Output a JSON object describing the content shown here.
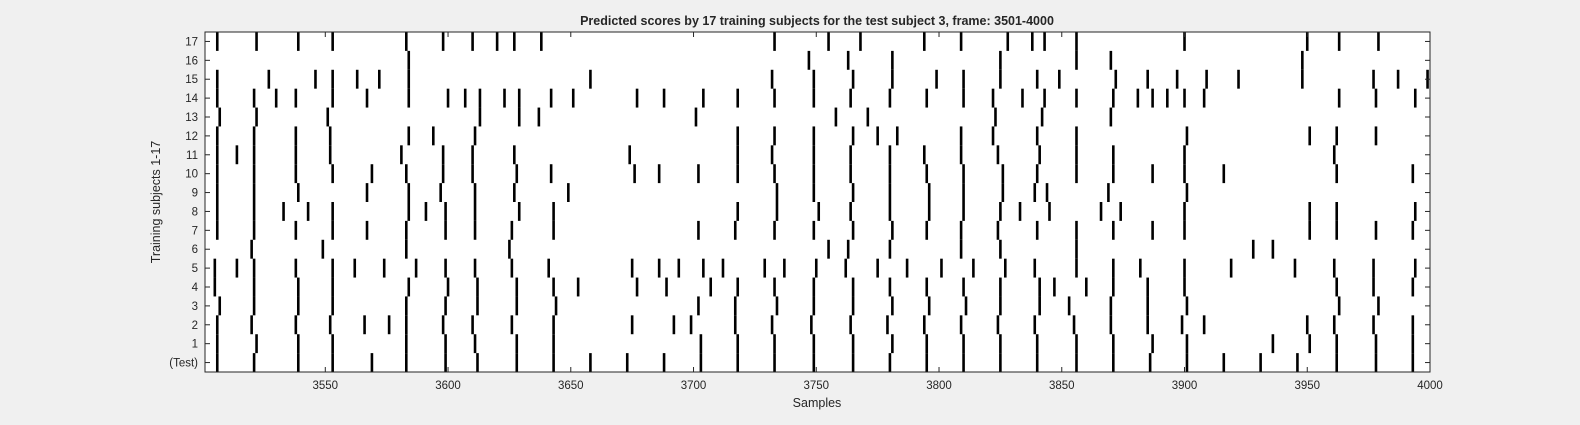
{
  "chart_data": {
    "type": "raster",
    "title": "Predicted scores by 17 training subjects for the test subject 3, frame: 3501-4000",
    "xlabel": "Samples",
    "ylabel": "Training subjects 1-17",
    "xlim": [
      3501,
      4000
    ],
    "xticks": [
      3550,
      3600,
      3650,
      3700,
      3750,
      3800,
      3850,
      3900,
      3950,
      4000
    ],
    "ytick_labels": [
      "(Test)",
      "1",
      "2",
      "3",
      "4",
      "5",
      "6",
      "7",
      "8",
      "9",
      "10",
      "11",
      "12",
      "13",
      "14",
      "15",
      "16",
      "17"
    ],
    "grid": false,
    "colors": {
      "background": "#f0f0f0",
      "axes": "#ffffff",
      "marks": "#000000",
      "frame": "#262626"
    },
    "rows": [
      {
        "label": "(Test)",
        "events": [
          3506,
          3521,
          3539,
          3553,
          3569,
          3583,
          3599,
          3612,
          3628,
          3643,
          3658,
          3673,
          3688,
          3703,
          3718,
          3733,
          3749,
          3765,
          3780,
          3795,
          3810,
          3825,
          3840,
          3856,
          3871,
          3886,
          3901,
          3916,
          3931,
          3946,
          3962,
          3978,
          3993
        ]
      },
      {
        "label": "1",
        "events": [
          3506,
          3522,
          3539,
          3553,
          3583,
          3599,
          3611,
          3628,
          3643,
          3703,
          3718,
          3733,
          3749,
          3765,
          3781,
          3795,
          3810,
          3825,
          3840,
          3856,
          3871,
          3887,
          3901,
          3936,
          3951,
          3962,
          3978,
          3993
        ]
      },
      {
        "label": "2",
        "events": [
          3506,
          3520,
          3538,
          3552,
          3566,
          3576,
          3583,
          3598,
          3610,
          3626,
          3643,
          3675,
          3692,
          3699,
          3717,
          3732,
          3748,
          3764,
          3779,
          3794,
          3809,
          3824,
          3839,
          3855,
          3870,
          3885,
          3899,
          3908,
          3950,
          3961,
          3977,
          3993
        ]
      },
      {
        "label": "3",
        "events": [
          3507,
          3521,
          3539,
          3553,
          3583,
          3599,
          3612,
          3628,
          3644,
          3702,
          3717,
          3734,
          3749,
          3765,
          3781,
          3796,
          3811,
          3825,
          3841,
          3853,
          3870,
          3885,
          3901,
          3963,
          3979
        ]
      },
      {
        "label": "4",
        "events": [
          3505,
          3521,
          3539,
          3553,
          3584,
          3600,
          3612,
          3628,
          3643,
          3653,
          3677,
          3689,
          3707,
          3718,
          3733,
          3749,
          3765,
          3780,
          3795,
          3810,
          3825,
          3841,
          3847,
          3860,
          3871,
          3885,
          3900,
          3962,
          3977,
          3993
        ]
      },
      {
        "label": "5",
        "events": [
          3505,
          3514,
          3521,
          3538,
          3553,
          3562,
          3574,
          3587,
          3599,
          3611,
          3626,
          3641,
          3675,
          3686,
          3694,
          3704,
          3712,
          3729,
          3737,
          3750,
          3762,
          3775,
          3787,
          3801,
          3814,
          3827,
          3839,
          3856,
          3871,
          3882,
          3900,
          3919,
          3945,
          3961,
          3977,
          3994
        ]
      },
      {
        "label": "6",
        "events": [
          3520,
          3549,
          3583,
          3625,
          3755,
          3763,
          3780,
          3809,
          3825,
          3856,
          3928,
          3936
        ]
      },
      {
        "label": "7",
        "events": [
          3506,
          3521,
          3538,
          3553,
          3567,
          3583,
          3599,
          3611,
          3626,
          3643,
          3702,
          3717,
          3733,
          3749,
          3765,
          3781,
          3795,
          3809,
          3824,
          3840,
          3856,
          3871,
          3887,
          3900,
          3951,
          3962,
          3978,
          3993
        ]
      },
      {
        "label": "8",
        "events": [
          3506,
          3521,
          3533,
          3543,
          3553,
          3584,
          3591,
          3599,
          3611,
          3629,
          3643,
          3718,
          3734,
          3751,
          3764,
          3780,
          3796,
          3810,
          3825,
          3833,
          3845,
          3866,
          3874,
          3900,
          3951,
          3962,
          3994
        ]
      },
      {
        "label": "9",
        "events": [
          3506,
          3521,
          3539,
          3567,
          3584,
          3597,
          3611,
          3627,
          3649,
          3734,
          3749,
          3765,
          3780,
          3796,
          3810,
          3826,
          3839,
          3844,
          3869,
          3901
        ]
      },
      {
        "label": "10",
        "events": [
          3506,
          3521,
          3538,
          3553,
          3569,
          3583,
          3598,
          3610,
          3628,
          3642,
          3676,
          3686,
          3702,
          3718,
          3733,
          3749,
          3764,
          3780,
          3795,
          3810,
          3826,
          3840,
          3856,
          3871,
          3887,
          3900,
          3916,
          3962,
          3993
        ]
      },
      {
        "label": "11",
        "events": [
          3506,
          3514,
          3521,
          3538,
          3552,
          3581,
          3598,
          3610,
          3627,
          3674,
          3718,
          3732,
          3749,
          3764,
          3780,
          3794,
          3809,
          3824,
          3841,
          3856,
          3871,
          3900,
          3961
        ]
      },
      {
        "label": "12",
        "events": [
          3506,
          3521,
          3538,
          3552,
          3584,
          3594,
          3611,
          3718,
          3733,
          3749,
          3765,
          3775,
          3783,
          3809,
          3822,
          3840,
          3856,
          3901,
          3951,
          3962,
          3978
        ]
      },
      {
        "label": "13",
        "events": [
          3507,
          3522,
          3551,
          3613,
          3629,
          3637,
          3701,
          3758,
          3771,
          3823,
          3842,
          3870
        ]
      },
      {
        "label": "14",
        "events": [
          3506,
          3521,
          3530,
          3538,
          3553,
          3567,
          3584,
          3600,
          3607,
          3613,
          3623,
          3629,
          3642,
          3651,
          3677,
          3688,
          3704,
          3718,
          3733,
          3749,
          3764,
          3780,
          3795,
          3810,
          3822,
          3834,
          3843,
          3856,
          3871,
          3881,
          3887,
          3893,
          3900,
          3908,
          3963,
          3978,
          3994
        ]
      },
      {
        "label": "15",
        "events": [
          3506,
          3527,
          3546,
          3553,
          3563,
          3572,
          3584,
          3658,
          3732,
          3749,
          3765,
          3781,
          3799,
          3810,
          3825,
          3840,
          3849,
          3872,
          3885,
          3897,
          3909,
          3922,
          3948,
          3977,
          3987,
          3999
        ]
      },
      {
        "label": "16",
        "events": [
          3584,
          3747,
          3763,
          3781,
          3825,
          3856,
          3870,
          3948
        ]
      },
      {
        "label": "17",
        "events": [
          3506,
          3522,
          3539,
          3553,
          3583,
          3598,
          3610,
          3620,
          3627,
          3638,
          3733,
          3755,
          3768,
          3794,
          3809,
          3828,
          3838,
          3843,
          3856,
          3900,
          3950,
          3963,
          3979
        ]
      }
    ]
  }
}
